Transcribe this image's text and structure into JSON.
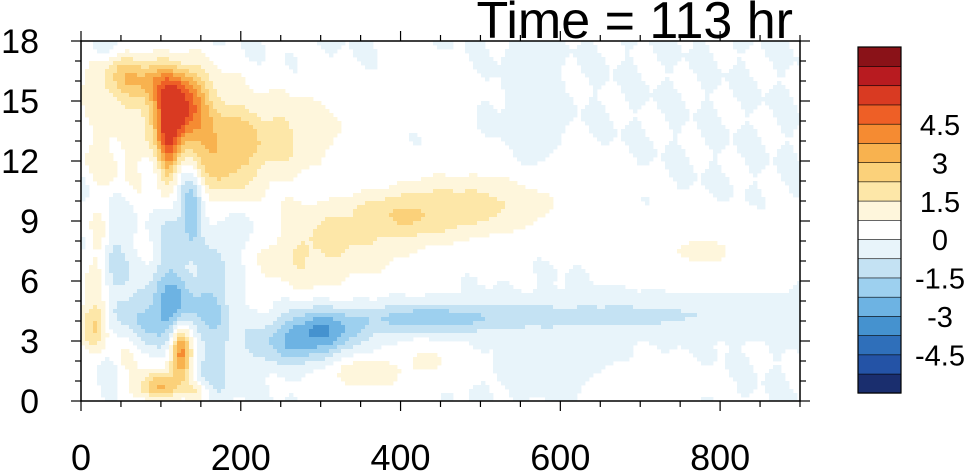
{
  "chart_data": {
    "type": "heatmap",
    "title": "Time = 113 hr",
    "xlabel": "",
    "ylabel": "",
    "xlim": [
      0,
      900
    ],
    "ylim": [
      0,
      18
    ],
    "x_ticks": [
      "0",
      "200",
      "400",
      "600",
      "800"
    ],
    "x_tick_values": [
      0,
      200,
      400,
      600,
      800
    ],
    "y_ticks": [
      "0",
      "3",
      "6",
      "9",
      "12",
      "15",
      "18"
    ],
    "y_tick_values": [
      0,
      3,
      6,
      9,
      12,
      15,
      18
    ],
    "colorbar": {
      "levels": [
        -5.25,
        -4.5,
        -3.75,
        -3,
        -2.25,
        -1.5,
        -0.75,
        0,
        0.75,
        1.5,
        2.25,
        3,
        3.75,
        4.5,
        5.25
      ],
      "colors_low_to_high": [
        "#1a2e6e",
        "#2453a6",
        "#2f6fba",
        "#4592cf",
        "#6db3e3",
        "#9dd0ef",
        "#c4e2f3",
        "#e8f4fa",
        "#ffffff",
        "#fef6dc",
        "#fde7a8",
        "#fbd17a",
        "#f8b24f",
        "#f58b32",
        "#ee5f26",
        "#d93a22",
        "#b81b20",
        "#8a1218"
      ],
      "labels": [
        "-4.5",
        "-3",
        "-1.5",
        "0",
        "1.5",
        "3",
        "4.5"
      ],
      "label_values": [
        -4.5,
        -3,
        -1.5,
        0,
        1.5,
        3,
        4.5
      ]
    },
    "features": [
      {
        "x": 120,
        "y": 14.3,
        "sx": 22,
        "sy": 1.3,
        "v": 6.0
      },
      {
        "x": 108,
        "y": 12.0,
        "sx": 10,
        "sy": 1.6,
        "v": 3.0
      },
      {
        "x": 100,
        "y": 16.0,
        "sx": 45,
        "sy": 0.9,
        "v": 2.2
      },
      {
        "x": 45,
        "y": 16.3,
        "sx": 30,
        "sy": 1.0,
        "v": 1.4
      },
      {
        "x": 40,
        "y": 12.5,
        "sx": 30,
        "sy": 1.8,
        "v": 1.2
      },
      {
        "x": 175,
        "y": 12.5,
        "sx": 30,
        "sy": 1.8,
        "v": 2.5
      },
      {
        "x": 230,
        "y": 13.0,
        "sx": 40,
        "sy": 1.6,
        "v": 1.2
      },
      {
        "x": 290,
        "y": 13.5,
        "sx": 50,
        "sy": 1.5,
        "v": 0.9
      },
      {
        "x": 400,
        "y": 9.3,
        "sx": 80,
        "sy": 0.9,
        "v": 1.4
      },
      {
        "x": 470,
        "y": 10.0,
        "sx": 70,
        "sy": 1.2,
        "v": 0.9
      },
      {
        "x": 550,
        "y": 10.0,
        "sx": 60,
        "sy": 1.2,
        "v": 0.6
      },
      {
        "x": 330,
        "y": 8.0,
        "sx": 70,
        "sy": 1.6,
        "v": 1.2
      },
      {
        "x": 270,
        "y": 7.0,
        "sx": 45,
        "sy": 1.2,
        "v": 0.8
      },
      {
        "x": 780,
        "y": 7.5,
        "sx": 50,
        "sy": 0.9,
        "v": 0.9
      },
      {
        "x": 430,
        "y": 15.5,
        "sx": 30,
        "sy": 1.0,
        "v": 0.6
      },
      {
        "x": 20,
        "y": 7.5,
        "sx": 10,
        "sy": 1.5,
        "v": 1.4
      },
      {
        "x": 20,
        "y": 4.0,
        "sx": 12,
        "sy": 1.1,
        "v": 2.6
      },
      {
        "x": 60,
        "y": 2.5,
        "sx": 20,
        "sy": 1.0,
        "v": 1.0
      },
      {
        "x": 125,
        "y": 2.5,
        "sx": 10,
        "sy": 1.0,
        "v": 5.0
      },
      {
        "x": 95,
        "y": 0.7,
        "sx": 20,
        "sy": 0.5,
        "v": 3.0
      },
      {
        "x": 145,
        "y": 0.5,
        "sx": 12,
        "sy": 0.4,
        "v": 1.5
      },
      {
        "x": 350,
        "y": 1.4,
        "sx": 40,
        "sy": 0.7,
        "v": 1.2
      },
      {
        "x": 440,
        "y": 2.0,
        "sx": 30,
        "sy": 0.7,
        "v": 0.8
      },
      {
        "x": 690,
        "y": 1.0,
        "sx": 40,
        "sy": 0.5,
        "v": 0.8
      },
      {
        "x": 110,
        "y": 9.0,
        "sx": 12,
        "sy": 3.5,
        "v": -1.0
      },
      {
        "x": 130,
        "y": 11.0,
        "sx": 10,
        "sy": 3.0,
        "v": -1.0
      },
      {
        "x": 140,
        "y": 9.5,
        "sx": 8,
        "sy": 1.2,
        "v": -1.8
      },
      {
        "x": 40,
        "y": 6.0,
        "sx": 12,
        "sy": 3.0,
        "v": -1.3
      },
      {
        "x": 120,
        "y": 4.5,
        "sx": 25,
        "sy": 1.3,
        "v": -2.2
      },
      {
        "x": 80,
        "y": 4.0,
        "sx": 20,
        "sy": 1.0,
        "v": -1.3
      },
      {
        "x": 170,
        "y": 5.0,
        "sx": 15,
        "sy": 2.2,
        "v": -1.3
      },
      {
        "x": 300,
        "y": 3.5,
        "sx": 35,
        "sy": 0.8,
        "v": -2.5
      },
      {
        "x": 260,
        "y": 2.8,
        "sx": 40,
        "sy": 0.8,
        "v": -1.4
      },
      {
        "x": 420,
        "y": 4.1,
        "sx": 60,
        "sy": 0.5,
        "v": -1.6
      },
      {
        "x": 540,
        "y": 4.2,
        "sx": 100,
        "sy": 0.5,
        "v": -1.0
      },
      {
        "x": 720,
        "y": 4.3,
        "sx": 90,
        "sy": 0.5,
        "v": -0.8
      },
      {
        "x": 30,
        "y": 17.5,
        "sx": 20,
        "sy": 0.6,
        "v": -0.9
      },
      {
        "x": 200,
        "y": 8.5,
        "sx": 30,
        "sy": 1.0,
        "v": -0.7
      },
      {
        "x": 330,
        "y": 10.0,
        "sx": 40,
        "sy": 1.5,
        "v": -0.5
      },
      {
        "x": 160,
        "y": 1.0,
        "sx": 15,
        "sy": 0.8,
        "v": -1.0
      },
      {
        "x": 560,
        "y": 14.0,
        "sx": 15,
        "sy": 2.0,
        "v": -0.6
      },
      {
        "x": 600,
        "y": 1.5,
        "sx": 40,
        "sy": 0.6,
        "v": -0.6
      }
    ]
  }
}
